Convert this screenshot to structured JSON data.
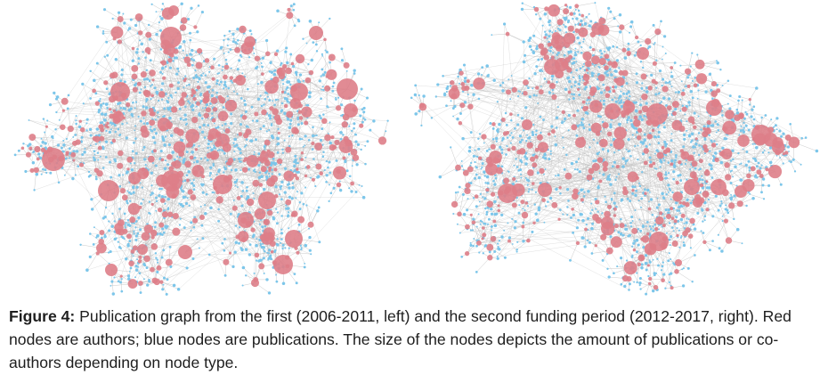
{
  "figure": {
    "label": "Figure 4:",
    "caption": " Publication graph from the first (2006-2011, left) and the second funding period (2012-2017, right). Red nodes are authors; blue nodes are publications. The size of the nodes depicts the amount of publications or co-authors depending on node type."
  },
  "colors": {
    "author_node": "#de7e88",
    "publication_node": "#7cc6ea",
    "edge": "#b8b8b8",
    "caption_text": "#1e1e1e"
  }
}
